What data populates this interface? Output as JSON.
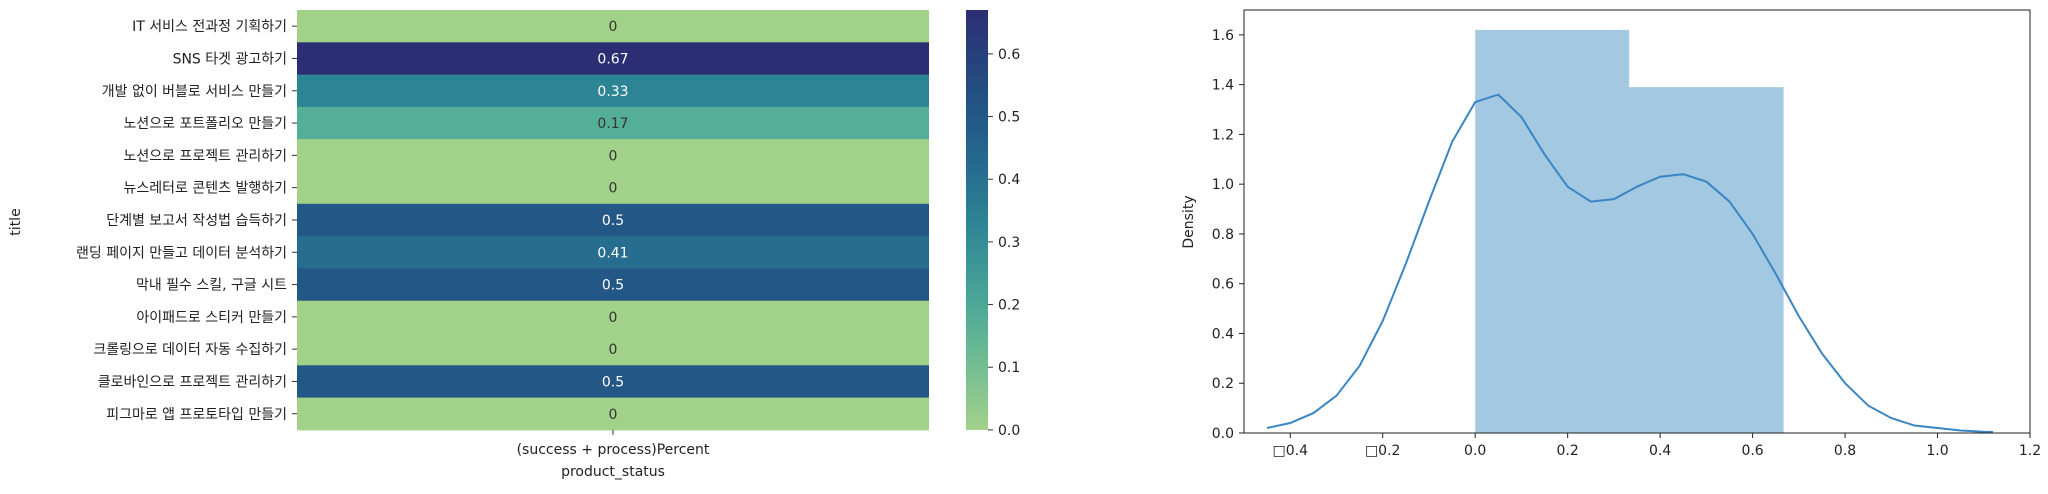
{
  "chart_data": [
    {
      "type": "heatmap",
      "xlabel": "product_status",
      "ylabel": "title",
      "column_label": "(success + process)Percent",
      "rows": [
        {
          "label": "IT 서비스 전과정 기획하기",
          "value": 0,
          "text": "0"
        },
        {
          "label": "SNS 타겟 광고하기",
          "value": 0.67,
          "text": "0.67"
        },
        {
          "label": "개발 없이 버블로 서비스 만들기",
          "value": 0.33,
          "text": "0.33"
        },
        {
          "label": "노션으로 포트폴리오 만들기",
          "value": 0.17,
          "text": "0.17"
        },
        {
          "label": "노션으로 프로젝트 관리하기",
          "value": 0,
          "text": "0"
        },
        {
          "label": "뉴스레터로 콘텐츠 발행하기",
          "value": 0,
          "text": "0"
        },
        {
          "label": "단계별 보고서 작성법 습득하기",
          "value": 0.5,
          "text": "0.5"
        },
        {
          "label": "랜딩 페이지 만들고 데이터 분석하기",
          "value": 0.41,
          "text": "0.41"
        },
        {
          "label": "막내 필수 스킬, 구글 시트",
          "value": 0.5,
          "text": "0.5"
        },
        {
          "label": "아이패드로 스티커 만들기",
          "value": 0,
          "text": "0"
        },
        {
          "label": "크롤링으로 데이터 자동 수집하기",
          "value": 0,
          "text": "0"
        },
        {
          "label": "클로바인으로 프로젝트 관리하기",
          "value": 0.5,
          "text": "0.5"
        },
        {
          "label": "피그마로 앱 프로토타입 만들기",
          "value": 0,
          "text": "0"
        }
      ],
      "colorbar": {
        "range": [
          0,
          0.67
        ],
        "ticks": [
          0.0,
          0.1,
          0.2,
          0.3,
          0.4,
          0.5,
          0.6
        ],
        "tick_labels": [
          "0.0",
          "0.1",
          "0.2",
          "0.3",
          "0.4",
          "0.5",
          "0.6"
        ],
        "colormap": "YlGnBu-like",
        "low_color": "#a2d18a",
        "high_color": "#2c2e73"
      }
    },
    {
      "type": "histogram+kde",
      "ylabel": "Density",
      "xlabel": "",
      "xlim": [
        -0.5,
        1.2
      ],
      "ylim": [
        0,
        1.7
      ],
      "x_ticks": [
        -0.4,
        -0.2,
        0.0,
        0.2,
        0.4,
        0.6,
        0.8,
        1.0,
        1.2
      ],
      "x_tick_labels": [
        "□0.4",
        "□0.2",
        "0.0",
        "0.2",
        "0.4",
        "0.6",
        "0.8",
        "1.0",
        "1.2"
      ],
      "y_ticks": [
        0.0,
        0.2,
        0.4,
        0.6,
        0.8,
        1.0,
        1.2,
        1.4,
        1.6
      ],
      "y_tick_labels": [
        "0.0",
        "0.2",
        "0.4",
        "0.6",
        "0.8",
        "1.0",
        "1.2",
        "1.4",
        "1.6"
      ],
      "bins": [
        {
          "x0": 0.0,
          "x1": 0.333,
          "density": 1.62
        },
        {
          "x0": 0.333,
          "x1": 0.667,
          "density": 1.39
        }
      ],
      "kde": {
        "x": [
          -0.45,
          -0.4,
          -0.35,
          -0.3,
          -0.25,
          -0.2,
          -0.15,
          -0.1,
          -0.05,
          0.0,
          0.05,
          0.1,
          0.15,
          0.2,
          0.25,
          0.3,
          0.35,
          0.4,
          0.45,
          0.5,
          0.55,
          0.6,
          0.65,
          0.7,
          0.75,
          0.8,
          0.85,
          0.9,
          0.95,
          1.0,
          1.05,
          1.1,
          1.12
        ],
        "y": [
          0.02,
          0.04,
          0.08,
          0.15,
          0.27,
          0.45,
          0.68,
          0.93,
          1.17,
          1.33,
          1.36,
          1.27,
          1.12,
          0.99,
          0.93,
          0.94,
          0.99,
          1.03,
          1.04,
          1.01,
          0.93,
          0.8,
          0.64,
          0.47,
          0.32,
          0.2,
          0.11,
          0.06,
          0.03,
          0.02,
          0.01,
          0.005,
          0.004
        ]
      },
      "bar_color": "#a3c8e2",
      "line_color": "#3a86c3"
    }
  ]
}
